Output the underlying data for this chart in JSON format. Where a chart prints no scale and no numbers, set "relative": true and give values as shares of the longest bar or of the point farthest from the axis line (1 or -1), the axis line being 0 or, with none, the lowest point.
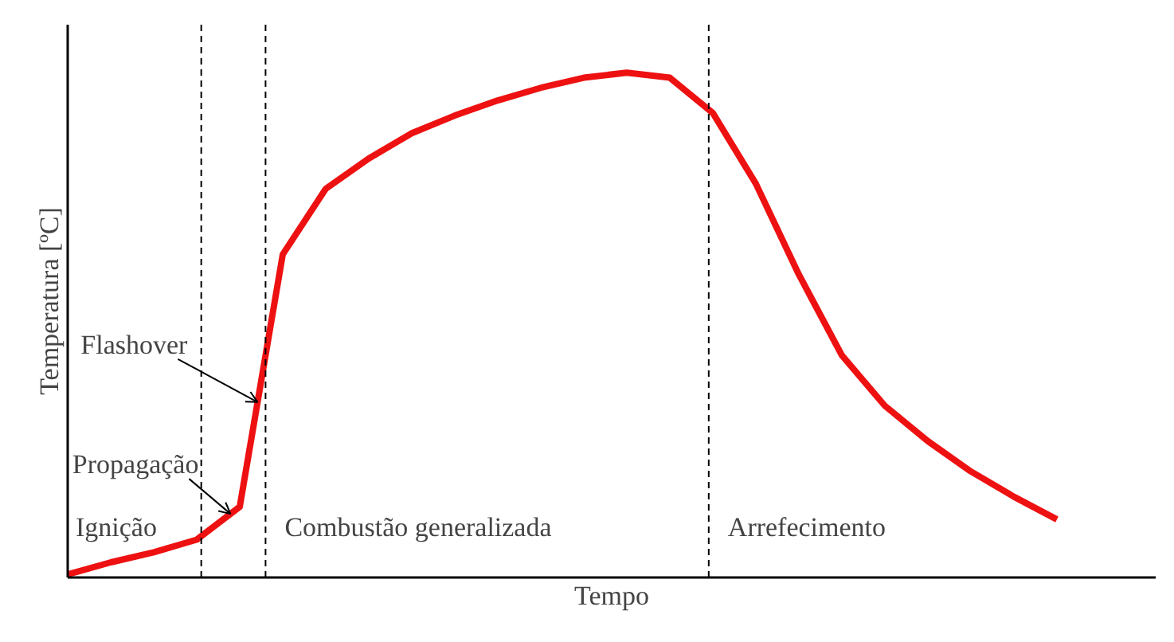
{
  "chart_data": {
    "type": "line",
    "relative": true,
    "xlabel": "Tempo",
    "ylabel": "Temperatura [ºC]",
    "marker": "none",
    "line_style": "solid",
    "categories": [
      null,
      null,
      null,
      null,
      null,
      null,
      null,
      null,
      null,
      null,
      null,
      null,
      null,
      null,
      null,
      null,
      null,
      null,
      null,
      null,
      null,
      null,
      null,
      null
    ],
    "series": [
      {
        "color": "#ee1111",
        "values": [
          0.006,
          0.03,
          0.05,
          0.075,
          0.14,
          0.64,
          0.77,
          0.83,
          0.88,
          0.915,
          0.945,
          0.97,
          0.99,
          1.0,
          0.99,
          0.92,
          0.78,
          0.6,
          0.44,
          0.34,
          0.27,
          0.21,
          0.16,
          0.115
        ]
      }
    ],
    "annotations": [
      "Ignição",
      "Combustão generalizada",
      "Arrefecimento",
      "Flashover",
      "Propagação"
    ]
  }
}
